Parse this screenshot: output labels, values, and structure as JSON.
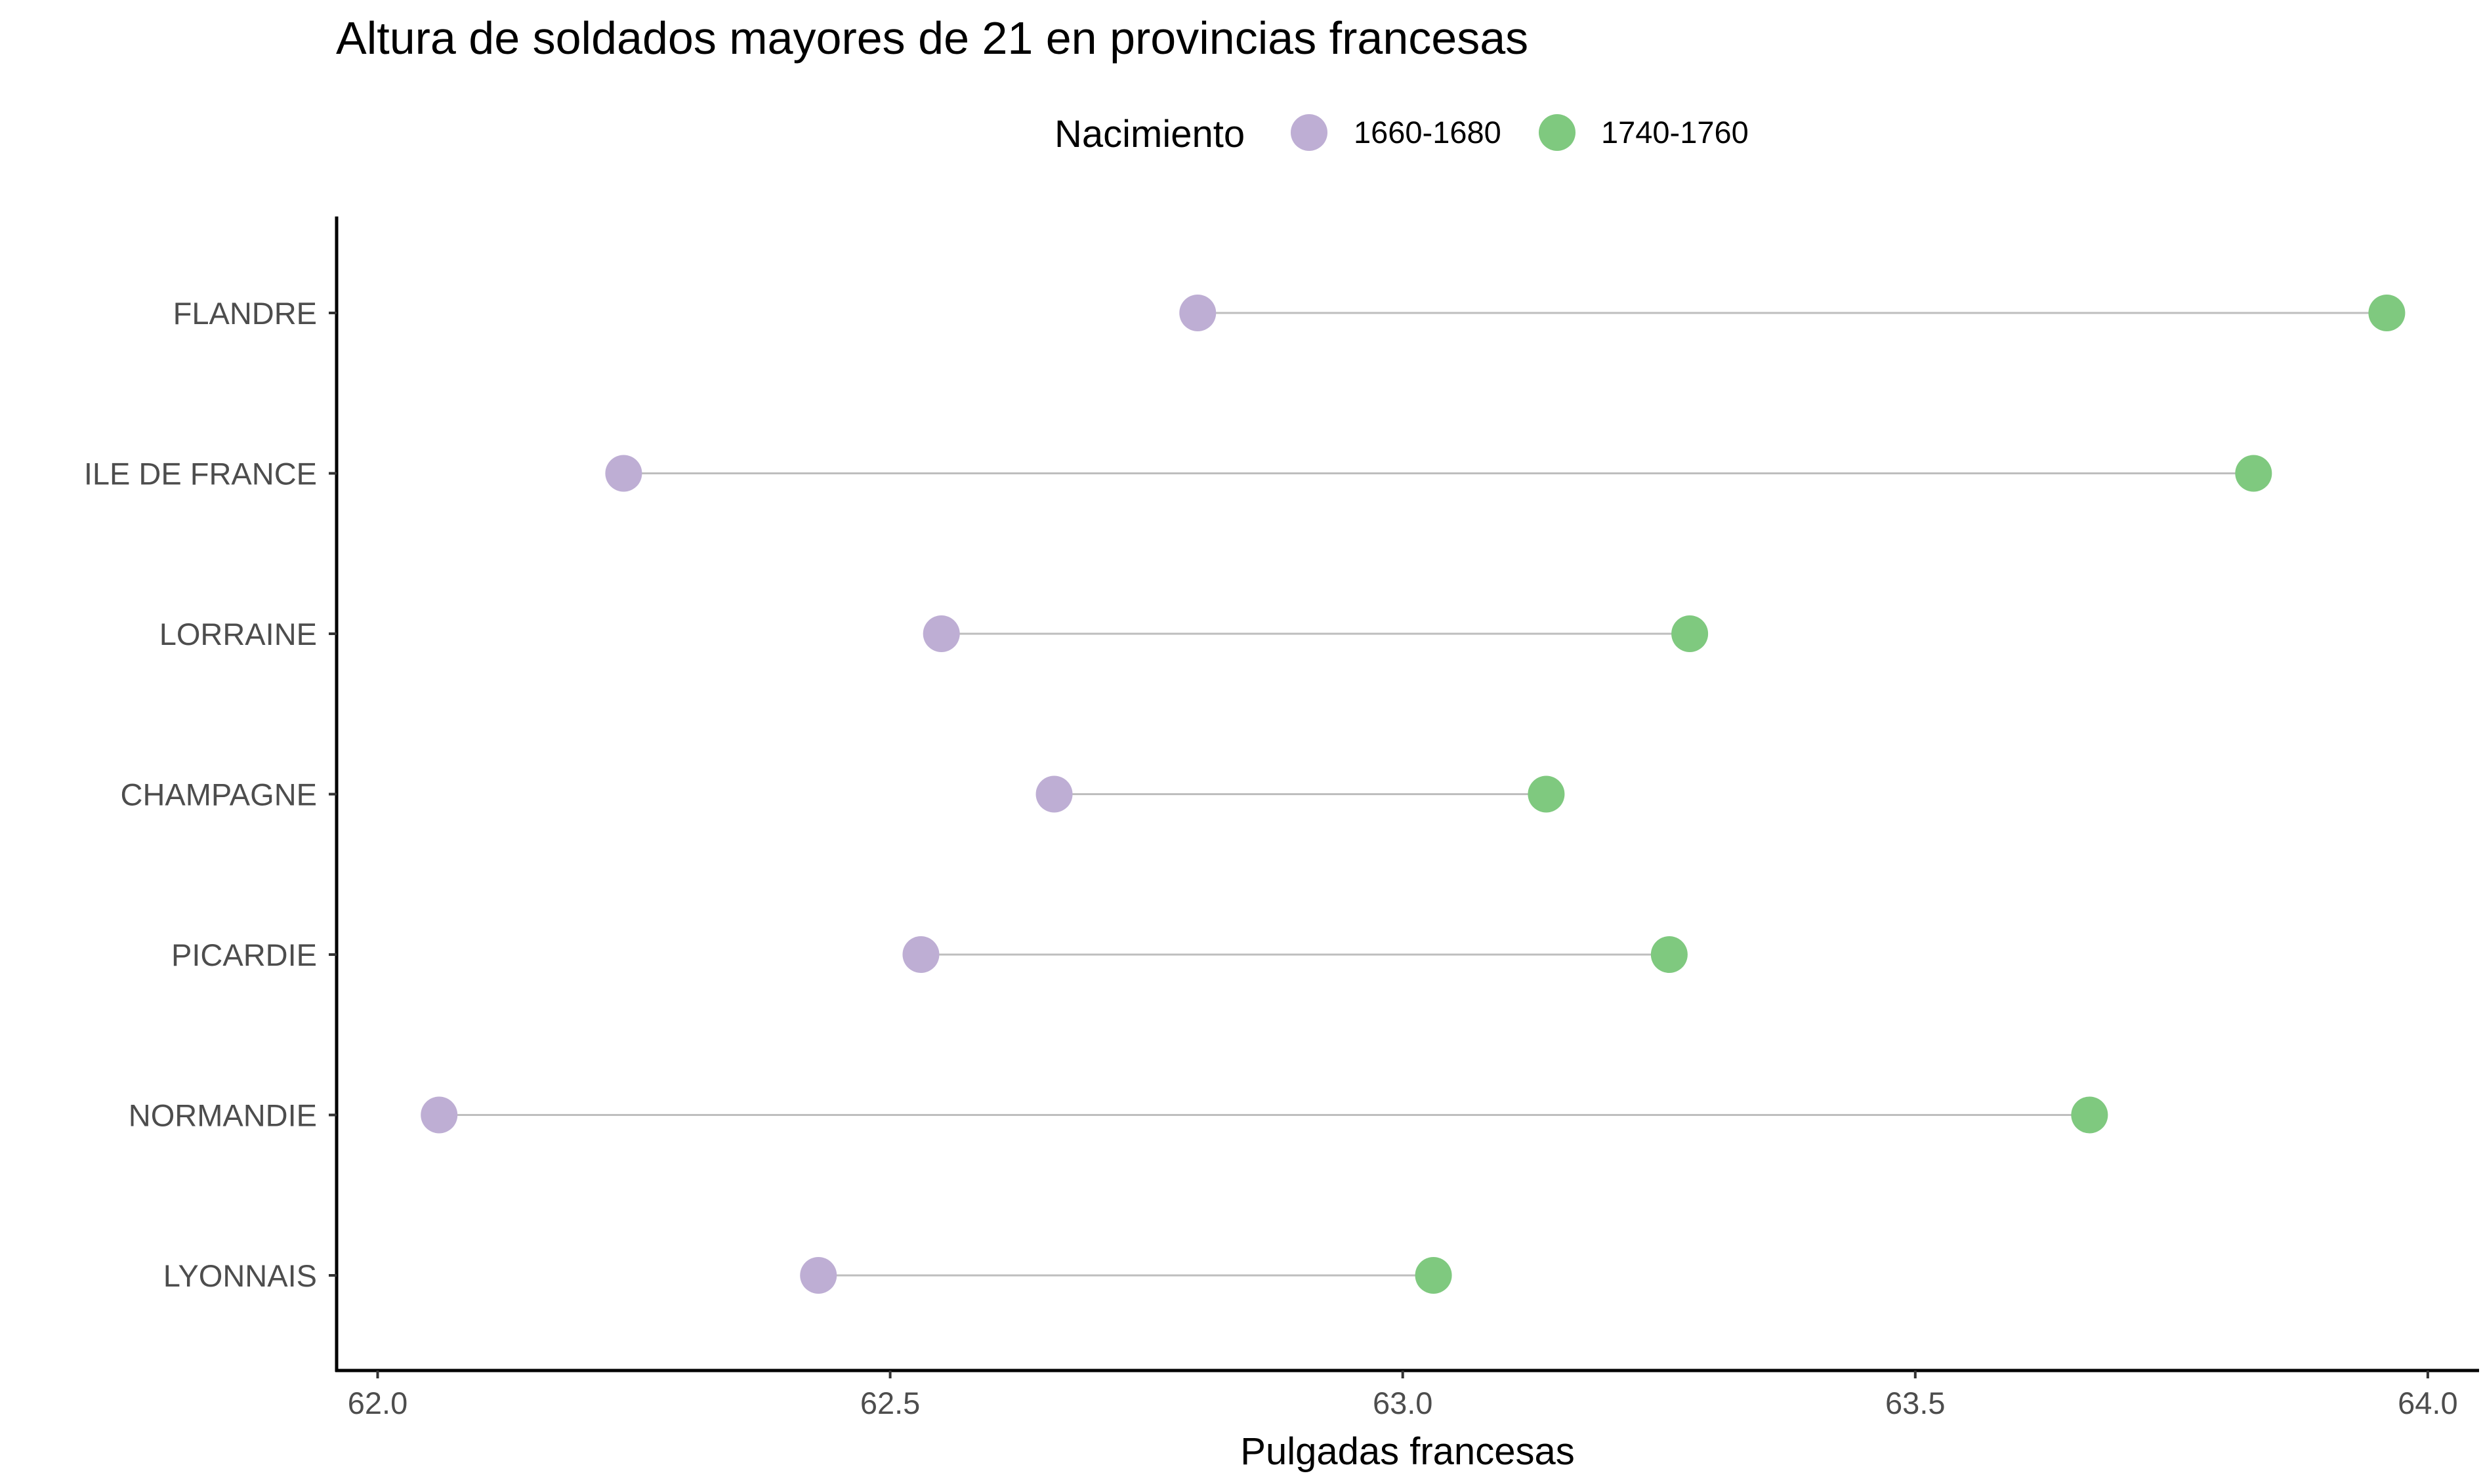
{
  "chart_data": {
    "type": "dumbbell",
    "title": "Altura de soldados mayores de 21 en provincias francesas",
    "xlabel": "Pulgadas francesas",
    "ylabel": "",
    "xlim": [
      61.96,
      64.05
    ],
    "xticks": [
      "62.0",
      "62.5",
      "63.0",
      "63.5",
      "64.0"
    ],
    "grid": false,
    "legend": {
      "title": "Nacimiento",
      "position": "top",
      "entries": [
        {
          "label": "1660-1680",
          "color": "#beaed4"
        },
        {
          "label": "1740-1760",
          "color": "#7fc97f"
        }
      ]
    },
    "categories": [
      "FLANDRE",
      "ILE DE FRANCE",
      "LORRAINE",
      "CHAMPAGNE",
      "PICARDIE",
      "NORMANDIE",
      "LYONNAIS"
    ],
    "series": [
      {
        "name": "1660-1680",
        "color": "#beaed4",
        "values": [
          62.8,
          62.24,
          62.55,
          62.66,
          62.53,
          62.06,
          62.43
        ]
      },
      {
        "name": "1740-1760",
        "color": "#7fc97f",
        "values": [
          63.96,
          63.83,
          63.28,
          63.14,
          63.26,
          63.67,
          63.03
        ]
      }
    ],
    "segment_color": "#bebebe"
  }
}
